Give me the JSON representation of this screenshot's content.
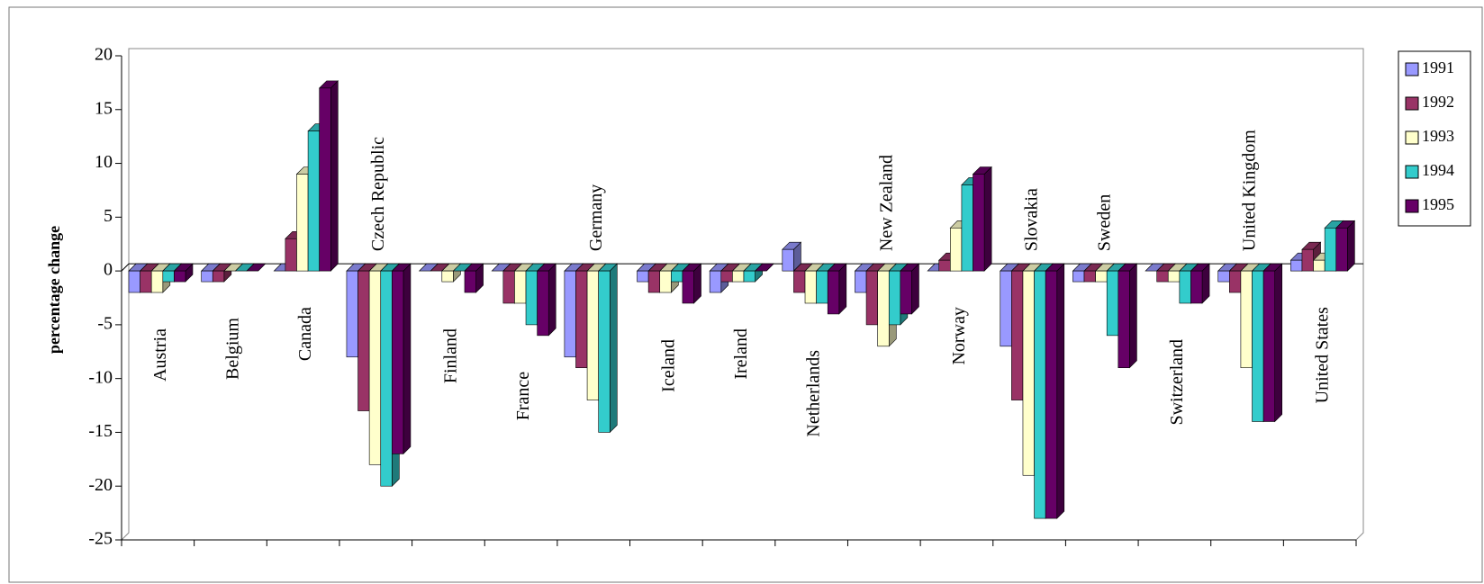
{
  "chart_data": {
    "type": "bar3d",
    "y_label": "percentage change",
    "categories": [
      "Austria",
      "Belgium",
      "Canada",
      "Czech Republic",
      "Finland",
      "France",
      "Germany",
      "Iceland",
      "Ireland",
      "Netherlands",
      "New Zealand",
      "Norway",
      "Slovakia",
      "Sweden",
      "Switzerland",
      "United Kingdom",
      "United States"
    ],
    "series": [
      {
        "name": "1991",
        "color": "#9999ff",
        "values": [
          -2,
          -1,
          0,
          -8,
          0,
          0,
          -8,
          -1,
          -2,
          2,
          -2,
          0,
          -7,
          -1,
          0,
          -1,
          1
        ]
      },
      {
        "name": "1992",
        "color": "#993366",
        "values": [
          -2,
          -1,
          3,
          -13,
          0,
          -3,
          -9,
          -2,
          -1,
          -2,
          -5,
          1,
          -12,
          -1,
          -1,
          -2,
          2
        ]
      },
      {
        "name": "1993",
        "color": "#ffffcc",
        "values": [
          -2,
          0,
          9,
          -18,
          -1,
          -3,
          -12,
          -2,
          -1,
          -3,
          -7,
          4,
          -19,
          -1,
          -1,
          -9,
          1
        ]
      },
      {
        "name": "1994",
        "color": "#33cccc",
        "values": [
          -1,
          0,
          13,
          -20,
          0,
          -5,
          -15,
          -1,
          -1,
          -3,
          -5,
          8,
          -23,
          -6,
          -3,
          -14,
          4
        ]
      },
      {
        "name": "1995",
        "color": "#660066",
        "values": [
          -1,
          0,
          17,
          -17,
          -2,
          -6,
          null,
          -3,
          0,
          -4,
          -4,
          9,
          -23,
          -9,
          -3,
          -14,
          4
        ]
      }
    ],
    "ylim": [
      -25,
      20
    ],
    "yticks": [
      -25,
      -20,
      -15,
      -10,
      -5,
      0,
      5,
      10,
      15,
      20
    ],
    "legend": "right"
  }
}
